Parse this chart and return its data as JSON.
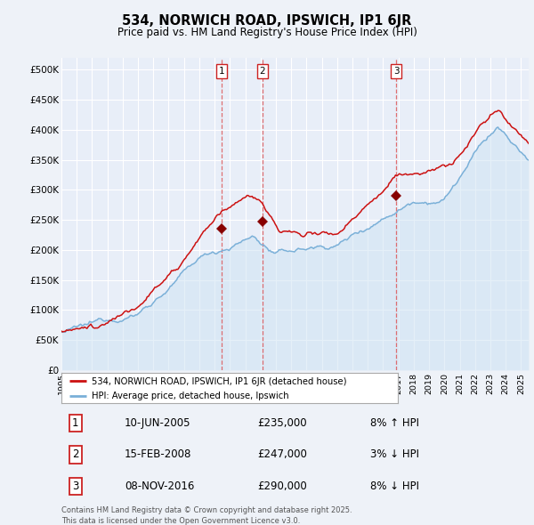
{
  "title": "534, NORWICH ROAD, IPSWICH, IP1 6JR",
  "subtitle": "Price paid vs. HM Land Registry's House Price Index (HPI)",
  "legend_red": "534, NORWICH ROAD, IPSWICH, IP1 6JR (detached house)",
  "legend_blue": "HPI: Average price, detached house, Ipswich",
  "footer": "Contains HM Land Registry data © Crown copyright and database right 2025.\nThis data is licensed under the Open Government Licence v3.0.",
  "sales": [
    {
      "num": 1,
      "date": "10-JUN-2005",
      "price": 235000,
      "pct": "8%",
      "dir": "↑"
    },
    {
      "num": 2,
      "date": "15-FEB-2008",
      "price": 247000,
      "pct": "3%",
      "dir": "↓"
    },
    {
      "num": 3,
      "date": "08-NOV-2016",
      "price": 290000,
      "pct": "8%",
      "dir": "↓"
    }
  ],
  "sale_years": [
    2005.44,
    2008.12,
    2016.85
  ],
  "sale_prices": [
    235000,
    247000,
    290000
  ],
  "vline_color": "#dd4444",
  "hpi_color": "#7ab0d8",
  "hpi_fill": "#d0e4f4",
  "price_color": "#cc1111",
  "ylim": [
    0,
    520000
  ],
  "yticks": [
    0,
    50000,
    100000,
    150000,
    200000,
    250000,
    300000,
    350000,
    400000,
    450000,
    500000
  ],
  "ytick_labels": [
    "£0",
    "£50K",
    "£100K",
    "£150K",
    "£200K",
    "£250K",
    "£300K",
    "£350K",
    "£400K",
    "£450K",
    "£500K"
  ],
  "background_color": "#eef2f8",
  "plot_bg": "#e8eef8",
  "grid_color": "#ffffff"
}
